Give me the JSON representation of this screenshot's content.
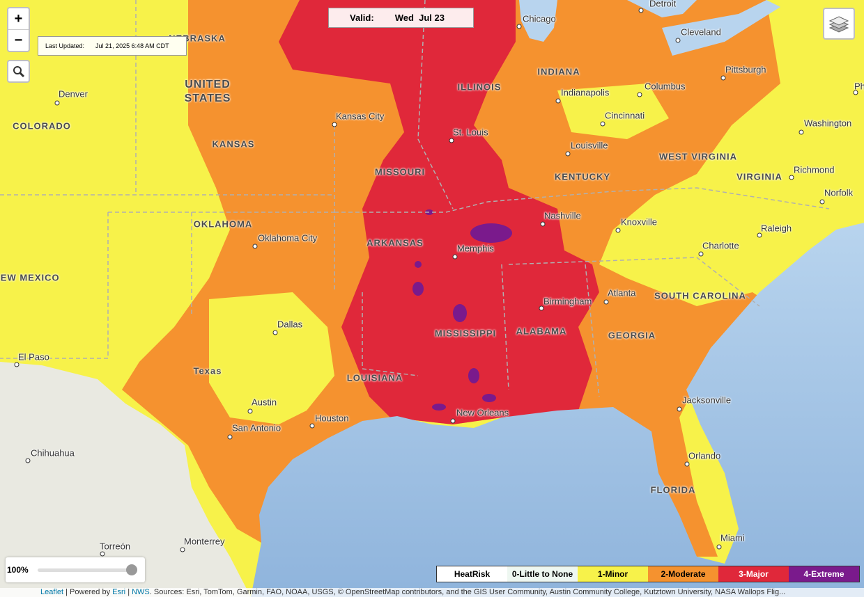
{
  "controls": {
    "zoom_in": "+",
    "zoom_out": "−",
    "opacity": "100%"
  },
  "last_updated": {
    "label": "Last Updated:",
    "value": "Jul 21, 2025 6:48 AM CDT"
  },
  "valid": {
    "label": "Valid:",
    "value": "Wed  Jul 23"
  },
  "legend": {
    "title": "HeatRisk",
    "items": [
      {
        "label": "0-Little to None",
        "color": "#eef7f1"
      },
      {
        "label": "1-Minor",
        "color": "#f7f24a"
      },
      {
        "label": "2-Moderate",
        "color": "#f5922f"
      },
      {
        "label": "3-Major",
        "color": "#e0283a"
      },
      {
        "label": "4-Extreme",
        "color": "#7a1a8c"
      }
    ]
  },
  "states": [
    "NEBRASKA",
    "UNITED STATES",
    "COLORADO",
    "KANSAS",
    "MISSOURI",
    "ILLINOIS",
    "INDIANA",
    "OKLAHOMA",
    "ARKANSAS",
    "KENTUCKY",
    "WEST VIRGINIA",
    "VIRGINIA",
    "NEW MEXICO",
    "Texas",
    "LOUISIANA",
    "MISSISSIPPI",
    "ALABAMA",
    "GEORGIA",
    "SOUTH CAROLINA",
    "FLORIDA"
  ],
  "cities": [
    "Detroit",
    "Chicago",
    "Cleveland",
    "Pittsburgh",
    "Columbus",
    "Indianapolis",
    "Cincinnati",
    "Washington",
    "Denver",
    "Kansas City",
    "St. Louis",
    "Louisville",
    "Richmond",
    "Norfolk",
    "Oklahoma City",
    "Memphis",
    "Nashville",
    "Knoxville",
    "Raleigh",
    "Charlotte",
    "Birmingham",
    "Atlanta",
    "Dallas",
    "El Paso",
    "Austin",
    "Houston",
    "San Antonio",
    "New Orleans",
    "Jacksonville",
    "Orlando",
    "Miami",
    "Chihuahua",
    "Torreón",
    "Monterrey",
    "Philadelphia"
  ],
  "attribution": {
    "leaflet": "Leaflet",
    "sep1": "| Powered by",
    "esri": "Esri",
    "sep2": "|",
    "nws": "NWS",
    "sources": ". Sources: Esri, TomTom, Garmin, FAO, NOAA, USGS, © OpenStreetMap contributors, and the GIS User Community, Austin Community College, Kutztown University, NASA Wallops Flig..."
  }
}
